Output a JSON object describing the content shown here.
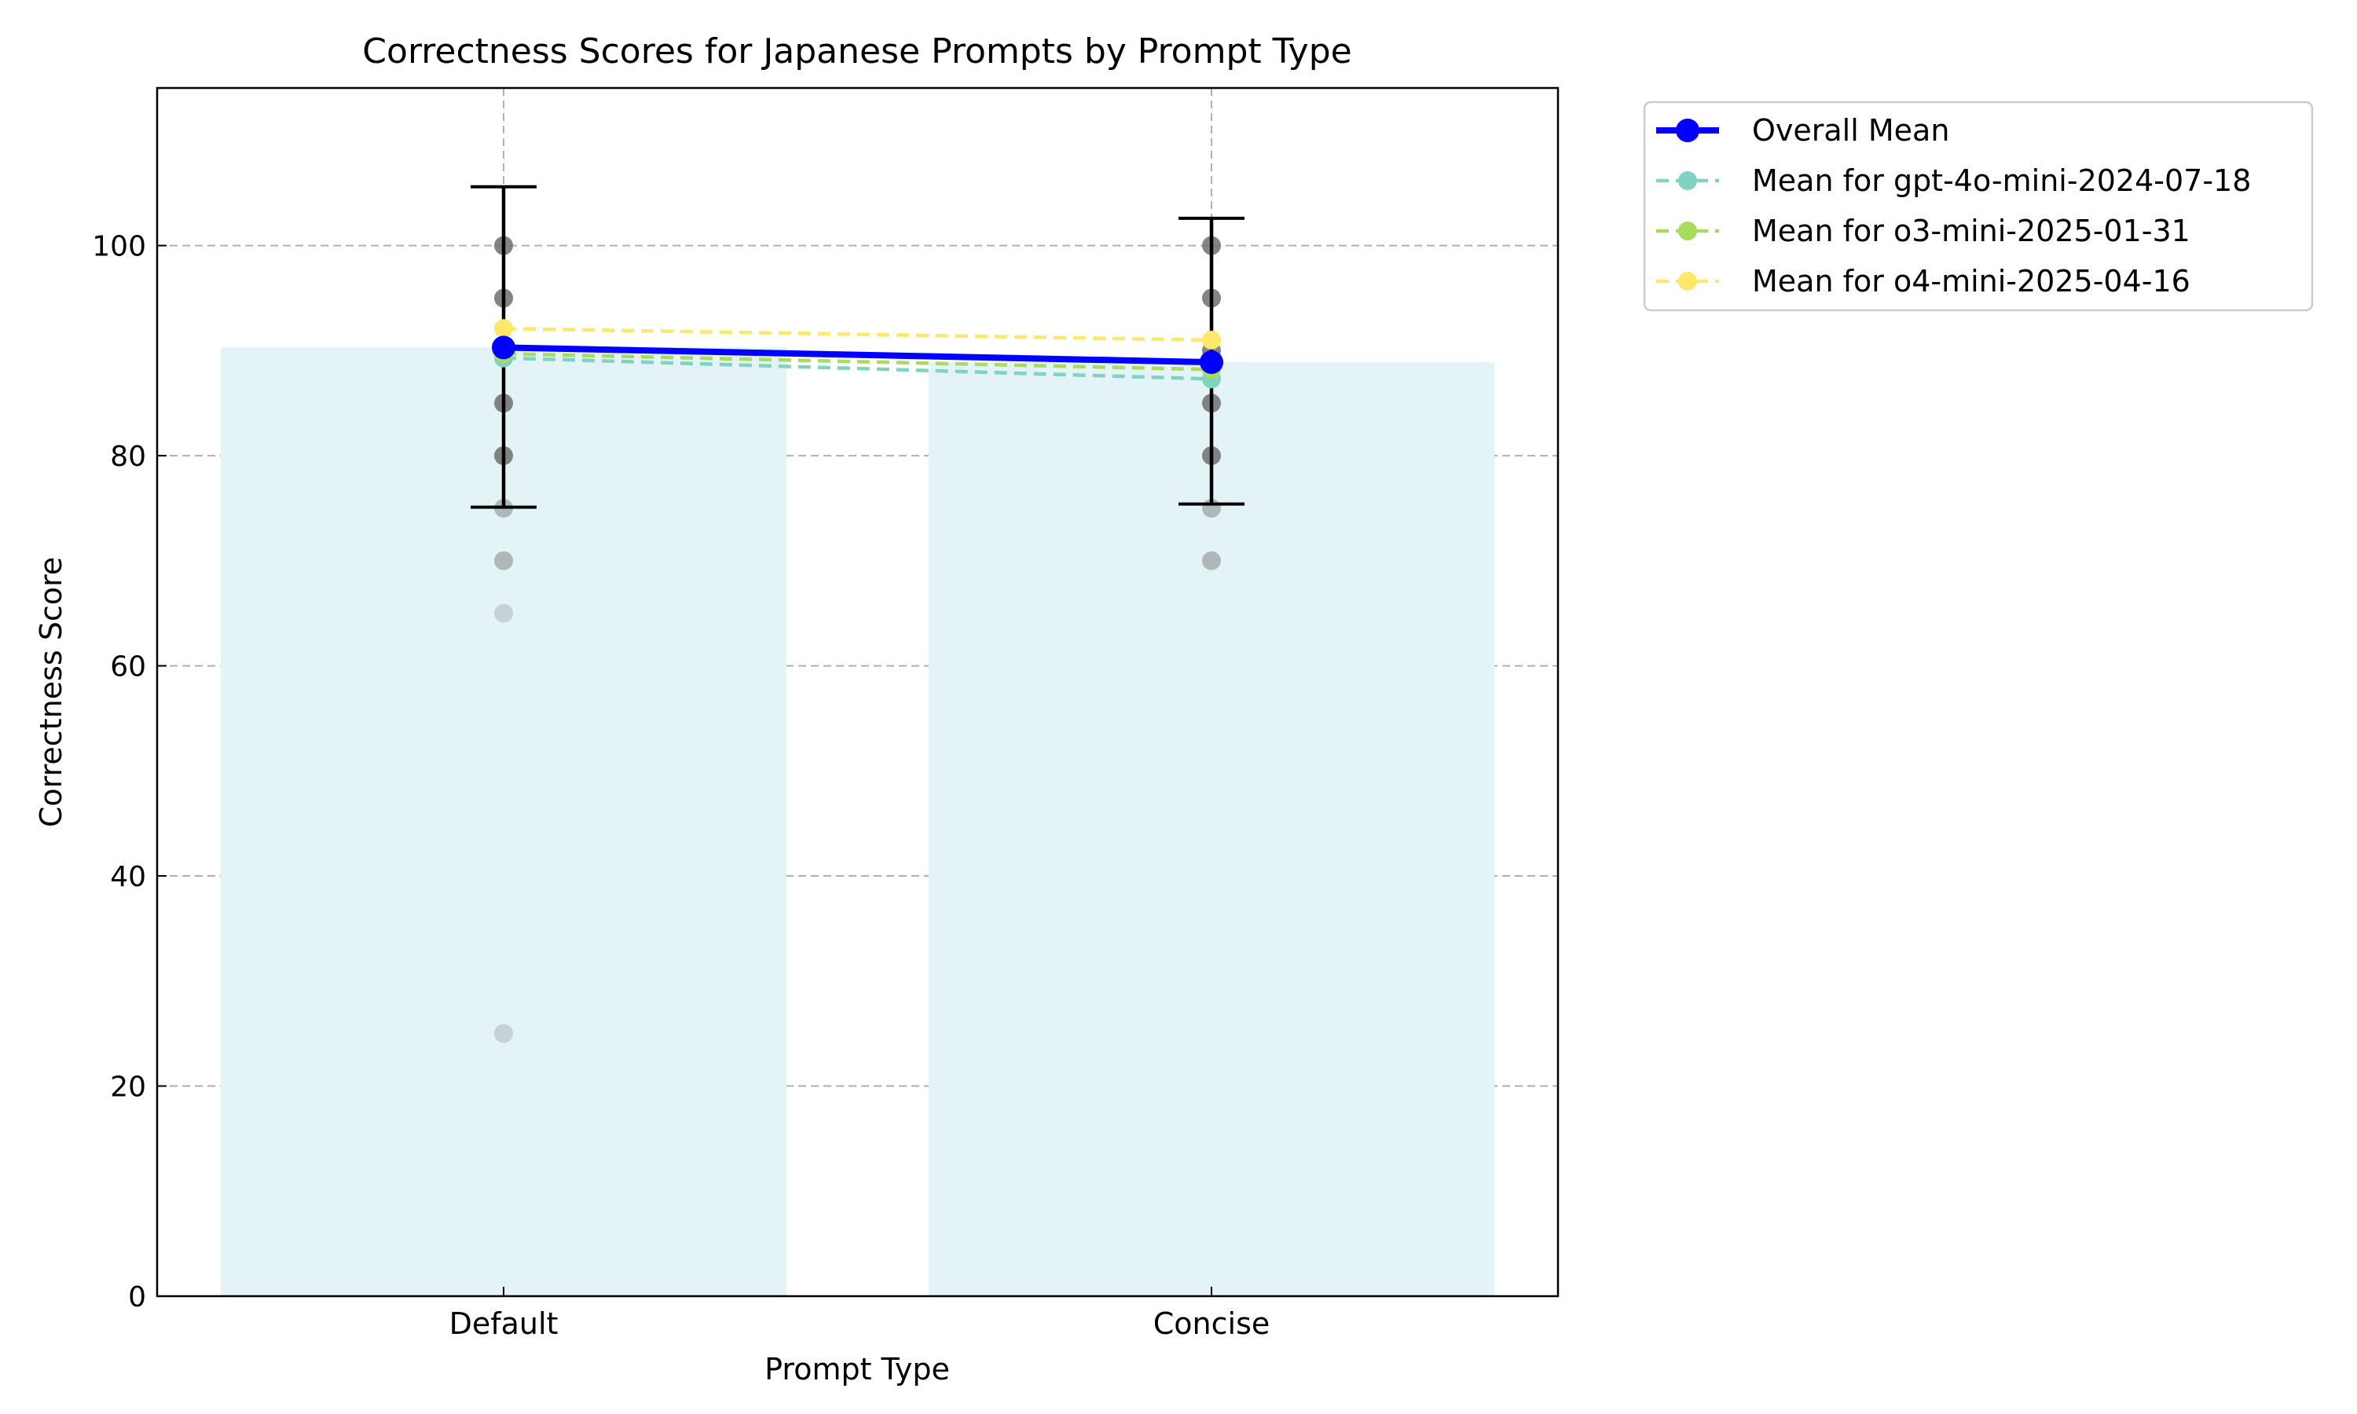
{
  "chart_data": {
    "type": "bar",
    "title": "Correctness Scores for Japanese Prompts by Prompt Type",
    "xlabel": "Prompt Type",
    "ylabel": "Correctness Score",
    "categories": [
      "Default",
      "Concise"
    ],
    "ylim": [
      0,
      115
    ],
    "yticks": [
      0,
      20,
      40,
      60,
      80,
      100
    ],
    "grid": true,
    "legend_position": "outside-top-right",
    "bars": {
      "values": [
        90.3,
        88.9
      ],
      "color": "#e4f3f6"
    },
    "error_bars": [
      {
        "category": "Default",
        "low": 75.1,
        "high": 105.6
      },
      {
        "category": "Concise",
        "low": 75.4,
        "high": 102.6
      }
    ],
    "score_points": [
      {
        "category": "Default",
        "values": [
          100,
          95,
          90,
          85,
          80,
          75,
          70,
          65,
          25
        ]
      },
      {
        "category": "Concise",
        "values": [
          100,
          95,
          90,
          85,
          80,
          75,
          70
        ]
      }
    ],
    "series": [
      {
        "name": "Overall Mean",
        "values": [
          90.3,
          88.9
        ],
        "color": "#0000ff",
        "style": "solid"
      },
      {
        "name": "Mean for gpt-4o-mini-2024-07-18",
        "values": [
          89.3,
          87.3
        ],
        "color": "#7fd3c3",
        "style": "dashed"
      },
      {
        "name": "Mean for o3-mini-2025-01-31",
        "values": [
          89.7,
          88.2
        ],
        "color": "#a8dc5e",
        "style": "dashed"
      },
      {
        "name": "Mean for o4-mini-2025-04-16",
        "values": [
          92.1,
          91.0
        ],
        "color": "#fde86b",
        "style": "dashed"
      }
    ]
  }
}
